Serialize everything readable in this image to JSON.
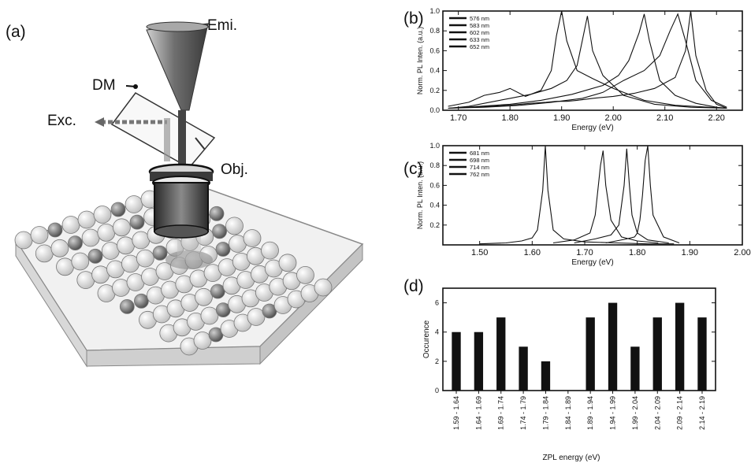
{
  "panel_labels": {
    "a": "(a)",
    "b": "(b)",
    "c": "(c)",
    "d": "(d)"
  },
  "schematic": {
    "emission_label": "Emi.",
    "dichroic_label": "DM",
    "excitation_label": "Exc.",
    "objective_label": "Obj."
  },
  "chart_data": [
    {
      "id": "b",
      "type": "line",
      "xlabel": "Energy (eV)",
      "ylabel": "Norm. PL Inten. (a.u.)",
      "xlim": [
        1.67,
        2.25
      ],
      "ylim": [
        0.0,
        1.0
      ],
      "xticks": [
        1.7,
        1.8,
        1.9,
        2.0,
        2.1,
        2.2
      ],
      "xtick_labels": [
        "1.70",
        "1.80",
        "1.90",
        "2.00",
        "2.10",
        "2.20"
      ],
      "yticks": [
        0.0,
        0.2,
        0.4,
        0.6,
        0.8,
        1.0
      ],
      "ytick_labels": [
        "0.0",
        "0.2",
        "0.4",
        "0.6",
        "0.8",
        "1.0"
      ],
      "legend_position": "top-left",
      "series": [
        {
          "name": "576 nm",
          "x": [
            1.68,
            1.72,
            1.76,
            1.8,
            1.84,
            1.87,
            1.89,
            1.91,
            1.93,
            1.96,
            2.0,
            2.04,
            2.08,
            2.12,
            2.14,
            2.15,
            2.16,
            2.18,
            2.2,
            2.22
          ],
          "y": [
            0.02,
            0.03,
            0.04,
            0.05,
            0.07,
            0.08,
            0.09,
            0.09,
            0.1,
            0.12,
            0.14,
            0.17,
            0.22,
            0.33,
            0.6,
            1.0,
            0.55,
            0.2,
            0.06,
            0.02
          ]
        },
        {
          "name": "583 nm",
          "x": [
            1.68,
            1.75,
            1.82,
            1.88,
            1.94,
            1.98,
            2.02,
            2.06,
            2.09,
            2.11,
            2.125,
            2.14,
            2.16,
            2.19,
            2.22
          ],
          "y": [
            0.02,
            0.03,
            0.05,
            0.08,
            0.12,
            0.18,
            0.3,
            0.4,
            0.55,
            0.8,
            0.97,
            0.7,
            0.3,
            0.1,
            0.03
          ]
        },
        {
          "name": "602 nm",
          "x": [
            1.68,
            1.74,
            1.8,
            1.86,
            1.92,
            1.98,
            2.01,
            2.03,
            2.05,
            2.06,
            2.07,
            2.09,
            2.12,
            2.16,
            2.2,
            2.22
          ],
          "y": [
            0.02,
            0.04,
            0.06,
            0.1,
            0.16,
            0.25,
            0.35,
            0.5,
            0.78,
            0.97,
            0.7,
            0.3,
            0.15,
            0.07,
            0.03,
            0.02
          ]
        },
        {
          "name": "633 nm",
          "x": [
            1.68,
            1.72,
            1.76,
            1.8,
            1.84,
            1.88,
            1.91,
            1.93,
            1.94,
            1.95,
            1.96,
            1.98,
            2.02,
            2.08,
            2.15,
            2.22
          ],
          "y": [
            0.02,
            0.04,
            0.08,
            0.12,
            0.16,
            0.22,
            0.3,
            0.45,
            0.7,
            0.95,
            0.6,
            0.35,
            0.15,
            0.06,
            0.03,
            0.02
          ]
        },
        {
          "name": "652 nm",
          "x": [
            1.68,
            1.72,
            1.75,
            1.78,
            1.8,
            1.83,
            1.86,
            1.88,
            1.89,
            1.9,
            1.91,
            1.93,
            1.96,
            2.0,
            2.06,
            2.12,
            2.22
          ],
          "y": [
            0.04,
            0.08,
            0.15,
            0.18,
            0.22,
            0.14,
            0.2,
            0.4,
            0.75,
            1.0,
            0.7,
            0.4,
            0.32,
            0.22,
            0.1,
            0.05,
            0.02
          ]
        }
      ]
    },
    {
      "id": "c",
      "type": "line",
      "xlabel": "Energy (eV)",
      "ylabel": "Norm. PL Inten. (a.u.)",
      "xlim": [
        1.43,
        2.0
      ],
      "ylim": [
        0.0,
        1.0
      ],
      "xticks": [
        1.5,
        1.6,
        1.7,
        1.8,
        1.9,
        2.0
      ],
      "xtick_labels": [
        "1.50",
        "1.60",
        "1.70",
        "1.80",
        "1.90",
        "2.00"
      ],
      "yticks": [
        0.2,
        0.4,
        0.6,
        0.8,
        1.0
      ],
      "ytick_labels": [
        "0.2",
        "0.4",
        "0.6",
        "0.8",
        "1.0"
      ],
      "legend_position": "top-left",
      "series": [
        {
          "name": "681 nm",
          "x": [
            1.74,
            1.76,
            1.78,
            1.795,
            1.8,
            1.805,
            1.81,
            1.815,
            1.82,
            1.825,
            1.83,
            1.85,
            1.88
          ],
          "y": [
            0.02,
            0.04,
            0.06,
            0.08,
            0.12,
            0.25,
            0.5,
            0.85,
            1.0,
            0.6,
            0.3,
            0.08,
            0.02
          ]
        },
        {
          "name": "698 nm",
          "x": [
            1.68,
            1.72,
            1.75,
            1.765,
            1.775,
            1.78,
            1.785,
            1.79,
            1.8,
            1.82,
            1.86
          ],
          "y": [
            0.02,
            0.06,
            0.1,
            0.2,
            0.6,
            0.97,
            0.6,
            0.3,
            0.12,
            0.05,
            0.02
          ]
        },
        {
          "name": "714 nm",
          "x": [
            1.64,
            1.68,
            1.71,
            1.72,
            1.73,
            1.735,
            1.74,
            1.75,
            1.77,
            1.8,
            1.84
          ],
          "y": [
            0.02,
            0.05,
            0.12,
            0.3,
            0.8,
            0.95,
            0.6,
            0.25,
            0.08,
            0.04,
            0.02
          ]
        },
        {
          "name": "762 nm",
          "x": [
            1.5,
            1.55,
            1.58,
            1.6,
            1.61,
            1.62,
            1.625,
            1.63,
            1.64,
            1.66,
            1.7,
            1.76,
            1.82,
            1.87
          ],
          "y": [
            0.01,
            0.02,
            0.04,
            0.07,
            0.15,
            0.55,
            1.0,
            0.55,
            0.15,
            0.06,
            0.03,
            0.02,
            0.01,
            0.01
          ]
        }
      ]
    },
    {
      "id": "d",
      "type": "bar",
      "xlabel": "ZPL energy (eV)",
      "ylabel": "Occurence",
      "ylim": [
        0,
        7
      ],
      "yticks": [
        0,
        2,
        4,
        6
      ],
      "ytick_labels": [
        "0",
        "2",
        "4",
        "6"
      ],
      "categories": [
        "1.59 - 1.64",
        "1.64 - 1.69",
        "1.69 - 1.74",
        "1.74 - 1.79",
        "1.79 - 1.84",
        "1.84 - 1.89",
        "1.89 - 1.94",
        "1.94 - 1.99",
        "1.99 - 2.04",
        "2.04 - 2.09",
        "2.09 - 2.14",
        "2.14 - 2.19"
      ],
      "values": [
        4,
        4,
        5,
        3,
        2,
        0,
        5,
        6,
        3,
        5,
        6,
        5
      ]
    }
  ],
  "colors": {
    "ink": "#111111",
    "bar_fill": "#111111",
    "shadow": "#9a9a9a"
  }
}
